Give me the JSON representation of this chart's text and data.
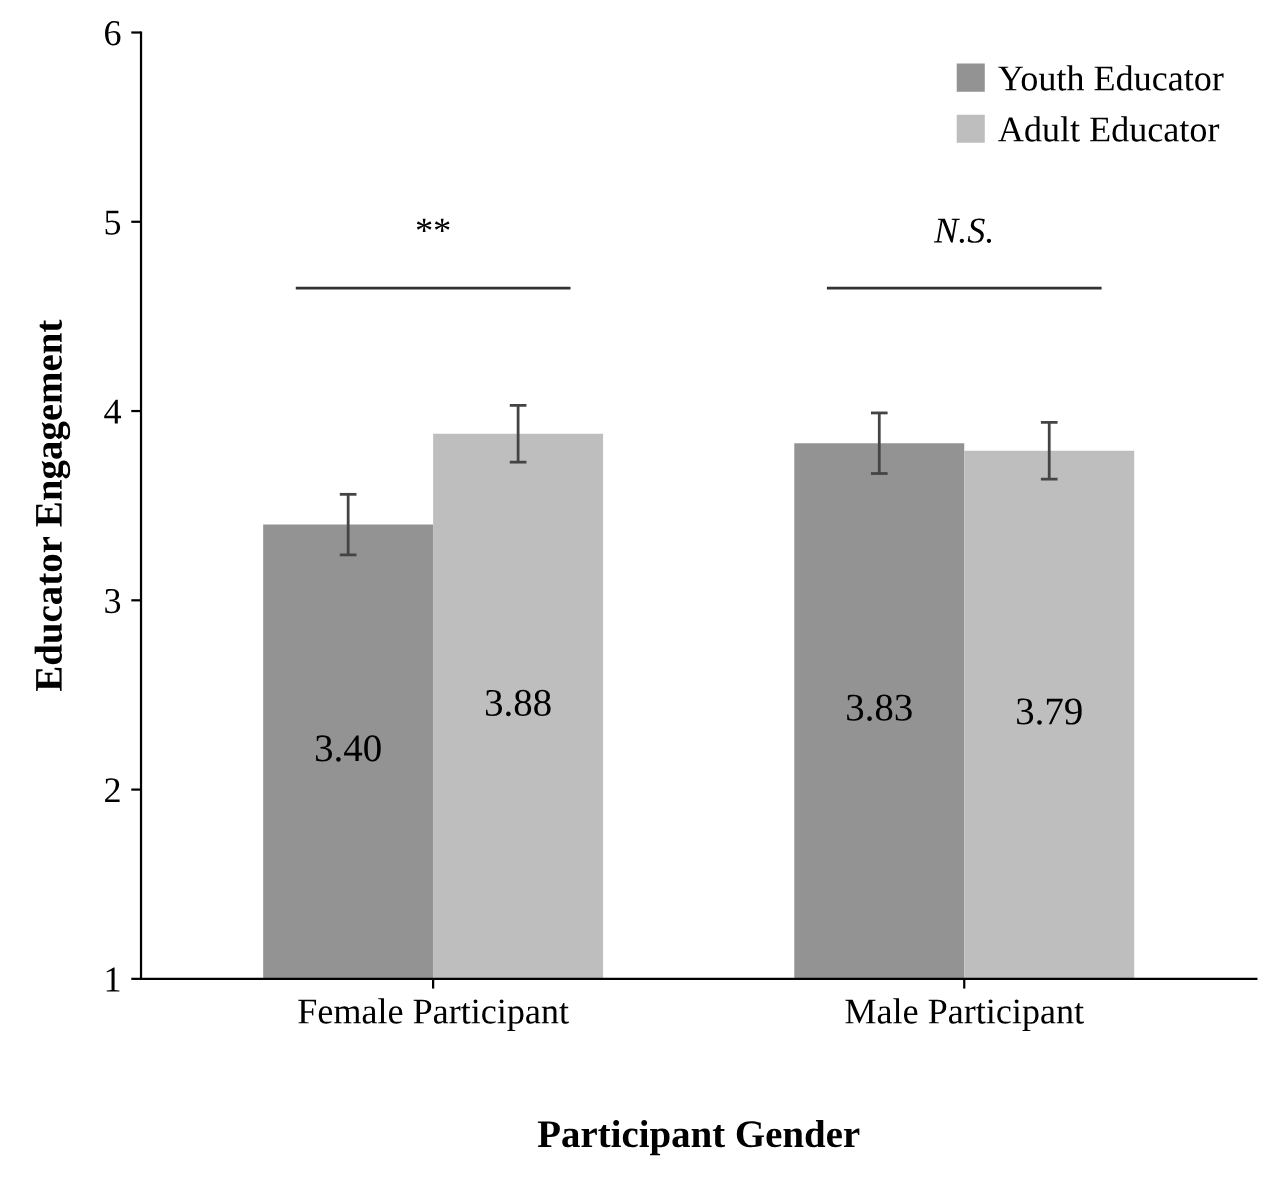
{
  "chart_data": {
    "type": "bar",
    "xlabel": "Participant Gender",
    "ylabel": "Educator Engagement",
    "categories": [
      "Female Participant",
      "Male Participant"
    ],
    "series": [
      {
        "name": "Youth Educator",
        "color": "#939393",
        "values": [
          3.4,
          3.83
        ],
        "errors": [
          0.16,
          0.16
        ],
        "value_labels": [
          "3.40",
          "3.83"
        ]
      },
      {
        "name": "Adult Educator",
        "color": "#bebebe",
        "values": [
          3.88,
          3.79
        ],
        "errors": [
          0.15,
          0.15
        ],
        "value_labels": [
          "3.88",
          "3.79"
        ]
      }
    ],
    "ylim": [
      1,
      6
    ],
    "yticks": [
      1,
      2,
      3,
      4,
      5,
      6
    ],
    "grid": false,
    "legend": "top right",
    "annotations": [
      "**",
      "N.S."
    ]
  }
}
